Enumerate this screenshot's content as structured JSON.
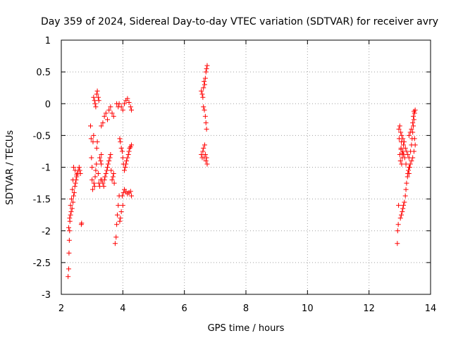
{
  "chart_data": {
    "type": "scatter",
    "title": "Day 359 of 2024, Sidereal Day-to-day VTEC variation (SDTVAR) for receiver avry",
    "xlabel": "GPS time / hours",
    "ylabel": "SDTVAR / TECUs",
    "xlim": [
      2,
      14
    ],
    "ylim": [
      -3,
      1
    ],
    "xticks": [
      2,
      4,
      6,
      8,
      10,
      12,
      14
    ],
    "yticks": [
      1,
      0.5,
      0,
      -0.5,
      -1,
      -1.5,
      -2,
      -2.5,
      -3
    ],
    "xtick_labels": [
      "2",
      "4",
      "6",
      "8",
      "10",
      "12",
      "14"
    ],
    "ytick_labels": [
      "1",
      "0.5",
      "0",
      "-0.5",
      "-1",
      "-1.5",
      "-2",
      "-2.5",
      "-3"
    ],
    "grid": true,
    "marker": "+",
    "series": [
      {
        "name": "SDTVAR",
        "color": "#ff0000",
        "points": [
          [
            2.22,
            -2.72
          ],
          [
            2.24,
            -2.6
          ],
          [
            2.25,
            -2.35
          ],
          [
            2.26,
            -2.15
          ],
          [
            2.27,
            -2.0
          ],
          [
            2.28,
            -1.85
          ],
          [
            2.3,
            -1.75
          ],
          [
            2.32,
            -1.7
          ],
          [
            2.35,
            -1.65
          ],
          [
            2.38,
            -1.55
          ],
          [
            2.4,
            -1.45
          ],
          [
            2.42,
            -1.4
          ],
          [
            2.44,
            -1.3
          ],
          [
            2.46,
            -1.25
          ],
          [
            2.48,
            -1.2
          ],
          [
            2.5,
            -1.15
          ],
          [
            2.52,
            -1.1
          ],
          [
            2.55,
            -1.05
          ],
          [
            2.58,
            -1.0
          ],
          [
            2.24,
            -1.95
          ],
          [
            2.27,
            -1.8
          ],
          [
            2.3,
            -1.6
          ],
          [
            2.33,
            -1.5
          ],
          [
            2.36,
            -1.35
          ],
          [
            2.38,
            -1.2
          ],
          [
            2.4,
            -1.0
          ],
          [
            2.45,
            -1.05
          ],
          [
            2.5,
            -1.12
          ],
          [
            2.6,
            -1.05
          ],
          [
            2.62,
            -1.1
          ],
          [
            2.65,
            -1.9
          ],
          [
            2.66,
            -1.88
          ],
          [
            2.95,
            -0.35
          ],
          [
            2.97,
            -0.55
          ],
          [
            2.98,
            -0.85
          ],
          [
            3.0,
            -1.0
          ],
          [
            3.0,
            -1.2
          ],
          [
            3.02,
            -1.35
          ],
          [
            3.03,
            -0.6
          ],
          [
            3.05,
            -0.5
          ],
          [
            3.06,
            -1.25
          ],
          [
            3.08,
            -1.3
          ],
          [
            3.1,
            -1.15
          ],
          [
            3.12,
            -1.05
          ],
          [
            3.14,
            -0.95
          ],
          [
            3.15,
            -0.7
          ],
          [
            3.17,
            -0.6
          ],
          [
            3.2,
            -1.1
          ],
          [
            3.22,
            -1.25
          ],
          [
            3.25,
            -1.3
          ],
          [
            3.28,
            -1.2
          ],
          [
            3.3,
            -0.8
          ],
          [
            3.05,
            0.1
          ],
          [
            3.08,
            0.05
          ],
          [
            3.1,
            0.0
          ],
          [
            3.12,
            -0.05
          ],
          [
            3.15,
            0.15
          ],
          [
            3.17,
            0.2
          ],
          [
            3.2,
            0.1
          ],
          [
            3.22,
            0.05
          ],
          [
            3.25,
            -0.85
          ],
          [
            3.28,
            -0.9
          ],
          [
            3.3,
            -0.95
          ],
          [
            3.32,
            -1.2
          ],
          [
            3.35,
            -1.25
          ],
          [
            3.38,
            -1.3
          ],
          [
            3.4,
            -1.2
          ],
          [
            3.42,
            -1.15
          ],
          [
            3.45,
            -1.1
          ],
          [
            3.48,
            -1.05
          ],
          [
            3.5,
            -1.0
          ],
          [
            3.52,
            -0.95
          ],
          [
            3.55,
            -0.9
          ],
          [
            3.58,
            -0.85
          ],
          [
            3.6,
            -0.8
          ],
          [
            3.62,
            -1.05
          ],
          [
            3.65,
            -1.2
          ],
          [
            3.68,
            -1.15
          ],
          [
            3.7,
            -1.1
          ],
          [
            3.72,
            -1.25
          ],
          [
            3.3,
            -0.35
          ],
          [
            3.35,
            -0.3
          ],
          [
            3.4,
            -0.2
          ],
          [
            3.45,
            -0.15
          ],
          [
            3.5,
            -0.25
          ],
          [
            3.55,
            -0.1
          ],
          [
            3.6,
            -0.05
          ],
          [
            3.65,
            -0.15
          ],
          [
            3.7,
            -0.2
          ],
          [
            3.75,
            -2.2
          ],
          [
            3.78,
            -2.1
          ],
          [
            3.8,
            -1.9
          ],
          [
            3.82,
            -1.75
          ],
          [
            3.85,
            -1.6
          ],
          [
            3.88,
            -1.45
          ],
          [
            3.9,
            -1.85
          ],
          [
            3.92,
            -1.8
          ],
          [
            3.8,
            0.0
          ],
          [
            3.85,
            -0.05
          ],
          [
            3.88,
            0.0
          ],
          [
            3.9,
            -0.55
          ],
          [
            3.92,
            -0.6
          ],
          [
            3.95,
            -0.7
          ],
          [
            3.98,
            -0.75
          ],
          [
            4.0,
            -0.85
          ],
          [
            4.02,
            -0.95
          ],
          [
            4.05,
            -1.05
          ],
          [
            4.08,
            -1.0
          ],
          [
            4.1,
            -0.95
          ],
          [
            4.12,
            -0.9
          ],
          [
            4.15,
            -0.85
          ],
          [
            4.18,
            -0.8
          ],
          [
            4.2,
            -0.75
          ],
          [
            4.22,
            -0.7
          ],
          [
            4.25,
            -0.68
          ],
          [
            4.28,
            -0.65
          ],
          [
            3.95,
            -0.05
          ],
          [
            4.0,
            -0.1
          ],
          [
            4.05,
            0.0
          ],
          [
            4.1,
            0.05
          ],
          [
            4.15,
            0.08
          ],
          [
            4.2,
            0.02
          ],
          [
            4.25,
            -0.05
          ],
          [
            4.28,
            -0.1
          ],
          [
            3.98,
            -1.45
          ],
          [
            4.02,
            -1.4
          ],
          [
            4.05,
            -1.35
          ],
          [
            4.1,
            -1.38
          ],
          [
            4.15,
            -1.42
          ],
          [
            4.2,
            -1.4
          ],
          [
            4.25,
            -1.38
          ],
          [
            4.28,
            -1.45
          ],
          [
            3.95,
            -1.7
          ],
          [
            4.0,
            -1.6
          ],
          [
            6.55,
            0.2
          ],
          [
            6.58,
            0.15
          ],
          [
            6.6,
            0.1
          ],
          [
            6.62,
            0.25
          ],
          [
            6.64,
            0.35
          ],
          [
            6.66,
            0.3
          ],
          [
            6.68,
            0.4
          ],
          [
            6.7,
            0.5
          ],
          [
            6.72,
            0.55
          ],
          [
            6.74,
            0.6
          ],
          [
            6.62,
            -0.05
          ],
          [
            6.65,
            -0.1
          ],
          [
            6.68,
            -0.2
          ],
          [
            6.7,
            -0.3
          ],
          [
            6.72,
            -0.4
          ],
          [
            6.55,
            -0.8
          ],
          [
            6.58,
            -0.85
          ],
          [
            6.6,
            -0.75
          ],
          [
            6.62,
            -0.7
          ],
          [
            6.64,
            -0.85
          ],
          [
            6.66,
            -0.65
          ],
          [
            6.68,
            -0.8
          ],
          [
            6.7,
            -0.9
          ],
          [
            6.72,
            -0.85
          ],
          [
            6.74,
            -0.95
          ],
          [
            12.92,
            -2.2
          ],
          [
            12.93,
            -2.0
          ],
          [
            12.95,
            -1.9
          ],
          [
            12.96,
            -1.6
          ],
          [
            12.97,
            -0.4
          ],
          [
            12.98,
            -0.55
          ],
          [
            13.0,
            -0.8
          ],
          [
            13.02,
            -0.9
          ],
          [
            13.04,
            -0.7
          ],
          [
            13.05,
            -0.6
          ],
          [
            13.06,
            -0.95
          ],
          [
            13.08,
            -0.85
          ],
          [
            13.1,
            -0.75
          ],
          [
            13.12,
            -0.65
          ],
          [
            13.02,
            -1.8
          ],
          [
            13.05,
            -1.75
          ],
          [
            13.08,
            -1.7
          ],
          [
            13.1,
            -1.65
          ],
          [
            13.12,
            -1.6
          ],
          [
            13.15,
            -1.55
          ],
          [
            13.18,
            -1.45
          ],
          [
            13.2,
            -1.35
          ],
          [
            13.22,
            -1.25
          ],
          [
            13.25,
            -1.15
          ],
          [
            13.28,
            -1.05
          ],
          [
            13.3,
            -1.1
          ],
          [
            13.32,
            -1.0
          ],
          [
            13.0,
            -0.35
          ],
          [
            13.03,
            -0.45
          ],
          [
            13.06,
            -0.5
          ],
          [
            13.1,
            -0.55
          ],
          [
            13.14,
            -0.6
          ],
          [
            13.18,
            -0.7
          ],
          [
            13.22,
            -0.75
          ],
          [
            13.26,
            -0.8
          ],
          [
            13.3,
            -0.85
          ],
          [
            13.35,
            -0.75
          ],
          [
            13.38,
            -0.65
          ],
          [
            13.4,
            -0.55
          ],
          [
            13.42,
            -0.45
          ],
          [
            13.44,
            -0.35
          ],
          [
            13.46,
            -0.25
          ],
          [
            13.48,
            -0.15
          ],
          [
            13.5,
            -0.1
          ],
          [
            13.3,
            -0.5
          ],
          [
            13.34,
            -0.45
          ],
          [
            13.38,
            -0.4
          ],
          [
            13.42,
            -0.3
          ],
          [
            13.44,
            -0.2
          ],
          [
            13.46,
            -0.12
          ],
          [
            13.48,
            -0.55
          ],
          [
            13.5,
            -0.65
          ],
          [
            13.46,
            -0.75
          ],
          [
            13.42,
            -0.85
          ],
          [
            13.38,
            -0.9
          ],
          [
            13.34,
            -0.95
          ],
          [
            13.3,
            -1.0
          ],
          [
            13.26,
            -1.1
          ],
          [
            13.2,
            -0.95
          ],
          [
            13.16,
            -0.85
          ],
          [
            13.12,
            -0.8
          ],
          [
            13.08,
            -0.78
          ],
          [
            13.04,
            -0.72
          ]
        ]
      }
    ]
  }
}
